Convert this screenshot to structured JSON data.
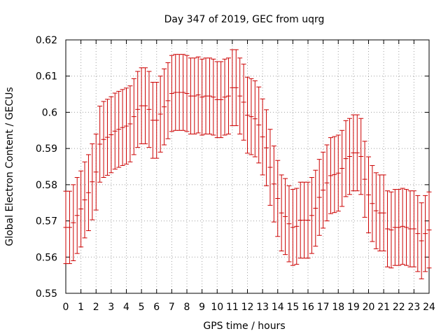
{
  "chart_data": {
    "type": "scatter",
    "title": "Day 347 of 2019, GEC from uqrg",
    "xlabel": "GPS time / hours",
    "ylabel": "Global Electron Content / GECUs",
    "xlim": [
      0,
      24
    ],
    "ylim": [
      0.55,
      0.62
    ],
    "xticks": [
      "0",
      "1",
      "2",
      "3",
      "4",
      "5",
      "6",
      "7",
      "8",
      "9",
      "10",
      "11",
      "12",
      "13",
      "14",
      "15",
      "16",
      "17",
      "18",
      "19",
      "20",
      "21",
      "22",
      "23",
      "24"
    ],
    "yticks": [
      "0.55",
      "0.56",
      "0.57",
      "0.58",
      "0.59",
      "0.6",
      "0.61",
      "0.62"
    ],
    "grid": true,
    "error_bars": true,
    "series_color": "#cc0000",
    "series": [
      {
        "x": [
          0,
          0.25,
          0.5,
          0.75,
          1,
          1.25,
          1.5,
          1.75,
          2,
          2.25,
          2.5,
          2.75,
          3,
          3.25,
          3.5,
          3.75,
          4,
          4.25,
          4.5,
          4.75,
          5,
          5.25,
          5.5,
          5.75,
          6,
          6.25,
          6.5,
          6.75,
          7,
          7.25,
          7.5,
          7.75,
          8,
          8.25,
          8.5,
          8.75,
          9,
          9.25,
          9.5,
          9.75,
          10,
          10.25,
          10.5,
          10.75,
          11,
          11.25,
          11.5,
          11.75,
          12,
          12.25,
          12.5,
          12.75,
          13,
          13.25,
          13.5,
          13.75,
          14,
          14.25,
          14.5,
          14.75,
          15,
          15.25,
          15.5,
          15.75,
          16,
          16.25,
          16.5,
          16.75,
          17,
          17.25,
          17.5,
          17.75,
          18,
          18.25,
          18.5,
          18.75,
          19,
          19.25,
          19.5,
          19.75,
          20,
          20.25,
          20.5,
          20.75,
          21,
          21.25,
          21.5,
          21.75,
          22,
          22.25,
          22.5,
          22.75,
          23,
          23.25,
          23.5,
          23.75,
          24
        ],
        "values": [
          0.5682,
          0.5682,
          0.5695,
          0.5715,
          0.5733,
          0.5758,
          0.5778,
          0.5808,
          0.5835,
          0.5912,
          0.5925,
          0.5931,
          0.5938,
          0.5948,
          0.5953,
          0.5958,
          0.5962,
          0.5968,
          0.5988,
          0.6008,
          0.6018,
          0.6018,
          0.6008,
          0.5978,
          0.5978,
          0.5995,
          0.6015,
          0.6032,
          0.6052,
          0.6055,
          0.6055,
          0.6055,
          0.6052,
          0.6045,
          0.6045,
          0.6048,
          0.6042,
          0.6045,
          0.6045,
          0.6042,
          0.6035,
          0.6035,
          0.6042,
          0.6045,
          0.6068,
          0.6068,
          0.6045,
          0.6028,
          0.5992,
          0.5988,
          0.5982,
          0.5965,
          0.5932,
          0.5902,
          0.5848,
          0.5802,
          0.5762,
          0.5722,
          0.5712,
          0.5692,
          0.5682,
          0.5685,
          0.5702,
          0.5702,
          0.5702,
          0.5715,
          0.5735,
          0.5765,
          0.5785,
          0.5805,
          0.5825,
          0.5828,
          0.5832,
          0.5845,
          0.5872,
          0.5878,
          0.5888,
          0.5888,
          0.5878,
          0.5815,
          0.5772,
          0.5748,
          0.5728,
          0.5722,
          0.5722,
          0.5678,
          0.5675,
          0.5682,
          0.5682,
          0.5685,
          0.5682,
          0.5678,
          0.5678,
          0.5665,
          0.5645,
          0.5665,
          0.5675
        ],
        "errors": [
          0.01,
          0.01,
          0.0105,
          0.0105,
          0.0105,
          0.0105,
          0.0105,
          0.0105,
          0.0105,
          0.0105,
          0.0105,
          0.0105,
          0.0105,
          0.0105,
          0.0105,
          0.0105,
          0.0105,
          0.0105,
          0.0105,
          0.0105,
          0.0105,
          0.0105,
          0.0105,
          0.0105,
          0.0105,
          0.0105,
          0.0105,
          0.0105,
          0.0105,
          0.0105,
          0.0105,
          0.0105,
          0.0105,
          0.0105,
          0.0105,
          0.0105,
          0.0105,
          0.0105,
          0.0105,
          0.0105,
          0.0105,
          0.0105,
          0.0105,
          0.0105,
          0.0105,
          0.0105,
          0.0105,
          0.0105,
          0.0105,
          0.0105,
          0.0105,
          0.0105,
          0.0105,
          0.0105,
          0.0105,
          0.0105,
          0.0105,
          0.0105,
          0.0105,
          0.0105,
          0.0105,
          0.0105,
          0.0105,
          0.0105,
          0.0105,
          0.0105,
          0.0105,
          0.0105,
          0.0105,
          0.0105,
          0.0105,
          0.0105,
          0.0105,
          0.0105,
          0.0105,
          0.0105,
          0.0105,
          0.0105,
          0.0105,
          0.0105,
          0.0105,
          0.0105,
          0.0105,
          0.0105,
          0.0105,
          0.0105,
          0.0105,
          0.0105,
          0.0105,
          0.0105,
          0.0105,
          0.0105,
          0.0105,
          0.0105,
          0.0105,
          0.0105,
          0.0105
        ]
      }
    ]
  }
}
